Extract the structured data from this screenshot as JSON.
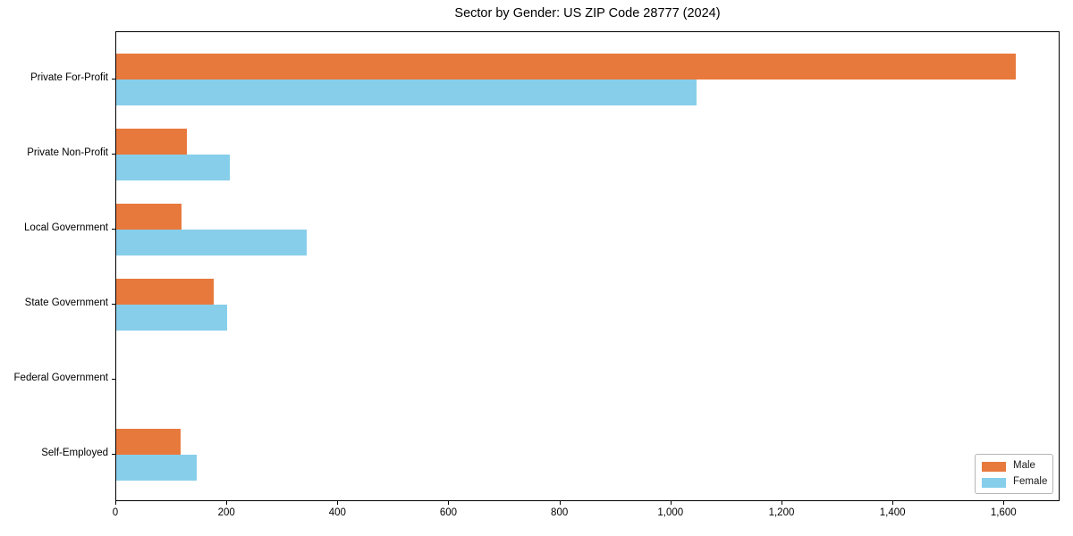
{
  "chart_data": {
    "type": "bar",
    "orientation": "horizontal",
    "title": "Sector by Gender: US ZIP Code 28777 (2024)",
    "categories": [
      "Private For-Profit",
      "Private Non-Profit",
      "Local Government",
      "State Government",
      "Federal Government",
      "Self-Employed"
    ],
    "series": [
      {
        "name": "Male",
        "color": "#e8793d",
        "values": [
          1620,
          127,
          118,
          176,
          0,
          116
        ]
      },
      {
        "name": "Female",
        "color": "#87ceeb",
        "values": [
          1045,
          205,
          343,
          200,
          0,
          145
        ]
      }
    ],
    "xlabel": "",
    "ylabel": "",
    "xlim": [
      0,
      1701
    ],
    "xticks": [
      0,
      200,
      400,
      600,
      800,
      1000,
      1200,
      1400,
      1600
    ],
    "xtick_labels": [
      "0",
      "200",
      "400",
      "600",
      "800",
      "1,000",
      "1,200",
      "1,400",
      "1,600"
    ],
    "grid": false,
    "legend": {
      "position": "lower right",
      "entries": [
        "Male",
        "Female"
      ]
    }
  }
}
